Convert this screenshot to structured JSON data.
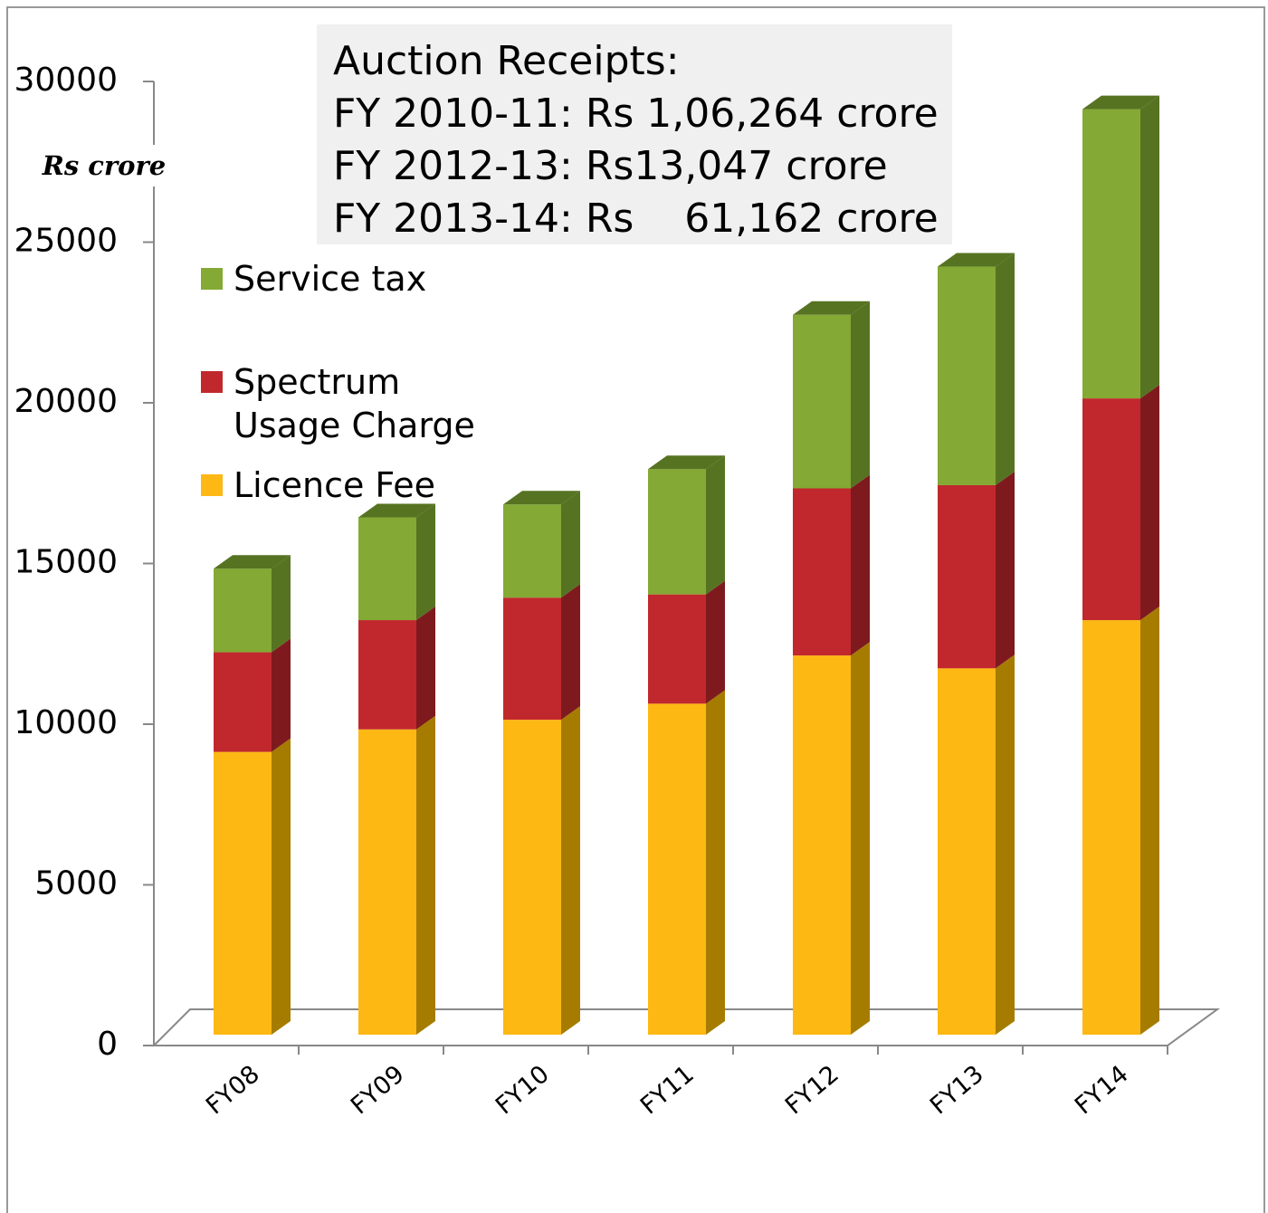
{
  "chart_data": {
    "type": "stacked_bar_3d",
    "y_label": "Rs crore",
    "annotation": [
      "Auction Receipts:",
      "FY 2010-11: Rs 1,06,264 crore",
      "FY 2012-13: Rs13,047 crore",
      "FY 2013-14: Rs    61,162 crore"
    ],
    "categories": [
      "FY08",
      "FY09",
      "FY10",
      "FY11",
      "FY12",
      "FY13",
      "FY14"
    ],
    "series": [
      {
        "name": "Licence Fee",
        "color": "#fdb813",
        "side_color": "#a67c00",
        "values": [
          8800,
          9500,
          9800,
          10300,
          11800,
          11400,
          12900
        ]
      },
      {
        "name": "Spectrum Usage Charge",
        "color": "#c1282d",
        "side_color": "#7e1a1e",
        "values": [
          3100,
          3400,
          3800,
          3400,
          5200,
          5700,
          6900
        ]
      },
      {
        "name": "Service tax",
        "color": "#84a934",
        "side_color": "#567322",
        "values": [
          2600,
          3200,
          2900,
          3900,
          5400,
          6800,
          9000
        ]
      }
    ],
    "ylim": [
      0,
      30000
    ],
    "yticks": [
      0,
      5000,
      10000,
      15000,
      20000,
      25000,
      30000
    ]
  }
}
